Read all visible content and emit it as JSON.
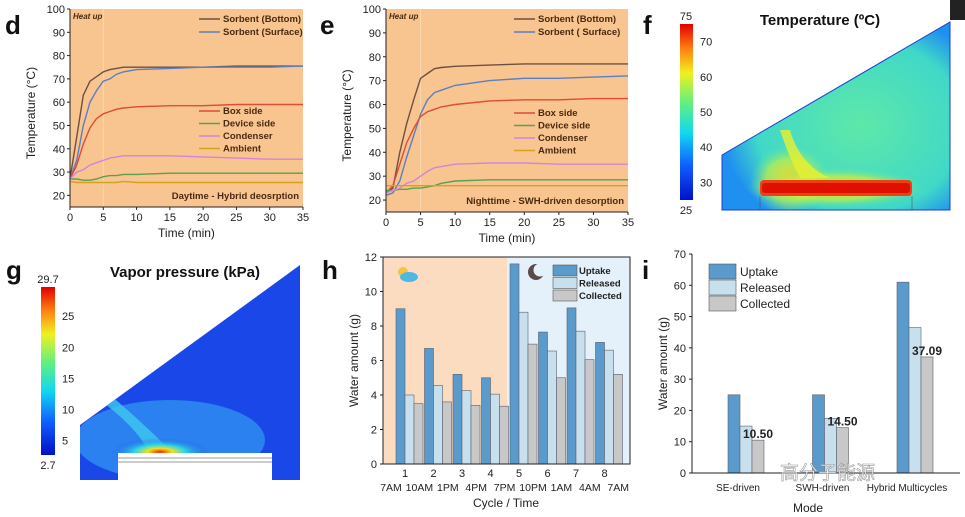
{
  "panel_letters": [
    "d",
    "e",
    "f",
    "g",
    "h",
    "i"
  ],
  "chart_data": [
    {
      "id": "d",
      "type": "line",
      "xlabel": "Time (min)",
      "ylabel": "Temperature (°C)",
      "xlim": [
        0,
        35
      ],
      "ylim": [
        15,
        100
      ],
      "xticks": [
        0,
        5,
        10,
        15,
        20,
        25,
        30,
        35
      ],
      "yticks": [
        20,
        30,
        40,
        50,
        60,
        70,
        80,
        90,
        100
      ],
      "background": "#f8c490",
      "annotations": {
        "phase": "Heat up",
        "mode": "Daytime - Hybrid deosrption"
      },
      "x": [
        0,
        1,
        2,
        3,
        4,
        5,
        6,
        7,
        8,
        10,
        15,
        20,
        25,
        30,
        35
      ],
      "series": [
        {
          "name": "Sorbent (Bottom)",
          "color": "#6e5040",
          "group": "top",
          "values": [
            27,
            45,
            63,
            69,
            71,
            73,
            74,
            74.5,
            75,
            75,
            75,
            75,
            75.5,
            75.5,
            75.5
          ]
        },
        {
          "name": "Sorbent (Surface)",
          "color": "#5b7fc2",
          "group": "top",
          "values": [
            27,
            35,
            50,
            60,
            65,
            69,
            70,
            72,
            73,
            74,
            74.5,
            75,
            75,
            75,
            75.5
          ]
        },
        {
          "name": "Box side",
          "color": "#e04a38",
          "group": "bottom",
          "values": [
            27,
            33,
            42,
            49,
            53,
            55,
            56,
            57,
            57.5,
            58,
            58.5,
            58.5,
            59,
            59,
            59
          ]
        },
        {
          "name": "Device side",
          "color": "#5aa050",
          "group": "bottom",
          "values": [
            27,
            27,
            26.5,
            26.5,
            27,
            28,
            28.5,
            28.5,
            29,
            29,
            29.5,
            29.5,
            29.5,
            29.5,
            29.5
          ]
        },
        {
          "name": "Condenser",
          "color": "#d584d8",
          "group": "bottom",
          "values": [
            27,
            30,
            31,
            33,
            34,
            35,
            36,
            36.5,
            37,
            37,
            37,
            36.5,
            36,
            35.5,
            35.5
          ]
        },
        {
          "name": "Ambient",
          "color": "#d4a21e",
          "group": "bottom",
          "values": [
            26,
            25.5,
            25.5,
            25.5,
            25.5,
            25.5,
            25.5,
            25.5,
            26,
            25.5,
            25.5,
            25.5,
            25.5,
            25.5,
            25.5
          ]
        }
      ]
    },
    {
      "id": "e",
      "type": "line",
      "xlabel": "Time (min)",
      "ylabel": "Temperature (°C)",
      "xlim": [
        0,
        35
      ],
      "ylim": [
        15,
        100
      ],
      "xticks": [
        0,
        5,
        10,
        15,
        20,
        25,
        30,
        35
      ],
      "yticks": [
        20,
        30,
        40,
        50,
        60,
        70,
        80,
        90,
        100
      ],
      "background": "#f8c490",
      "annotations": {
        "phase": "Heat up",
        "mode": "Nighttime - SWH-driven desorption"
      },
      "x": [
        0,
        1,
        2,
        3,
        4,
        5,
        6,
        7,
        8,
        10,
        15,
        20,
        25,
        30,
        35
      ],
      "series": [
        {
          "name": "Sorbent (Bottom)",
          "color": "#6e5040",
          "group": "top",
          "values": [
            23,
            25,
            40,
            52,
            62,
            71,
            73,
            75,
            75.5,
            76,
            76.5,
            77,
            77,
            77,
            77
          ]
        },
        {
          "name": "Sorbent ( Surface)",
          "color": "#5b7fc2",
          "group": "top",
          "values": [
            22,
            23,
            28,
            38,
            47,
            56,
            62,
            65,
            66,
            68,
            70,
            71,
            71,
            71.5,
            72
          ]
        },
        {
          "name": "Box side",
          "color": "#e04a38",
          "group": "bottom",
          "values": [
            23,
            26,
            35,
            44,
            50,
            55,
            57,
            58,
            59,
            60,
            61.5,
            62,
            62,
            62.5,
            62.5
          ]
        },
        {
          "name": "Device side",
          "color": "#5aa050",
          "group": "bottom",
          "values": [
            24,
            24,
            24.5,
            24.5,
            25,
            25,
            25.5,
            26,
            27,
            28,
            28.5,
            28.5,
            28.5,
            28.5,
            28.5
          ]
        },
        {
          "name": "Condenser",
          "color": "#d584d8",
          "group": "bottom",
          "values": [
            23,
            24,
            25,
            27,
            28,
            30,
            32,
            33.5,
            34,
            35,
            35.5,
            35.5,
            35,
            35,
            35
          ]
        },
        {
          "name": "Ambient",
          "color": "#d4a21e",
          "group": "bottom",
          "values": [
            26,
            26,
            26,
            26,
            26,
            26,
            26,
            26,
            26,
            26,
            26,
            26,
            26,
            26,
            26
          ]
        }
      ]
    },
    {
      "id": "f",
      "type": "heatmap",
      "title": "Temperature (ºC)",
      "colorbar": {
        "min": "25",
        "max": "75",
        "ticks": [
          "70",
          "60",
          "50",
          "40",
          "30"
        ]
      }
    },
    {
      "id": "g",
      "type": "heatmap",
      "title": "Vapor pressure (kPa)",
      "colorbar": {
        "min": "2.7",
        "max": "29.7",
        "ticks": [
          "25",
          "20",
          "15",
          "10",
          "5"
        ]
      }
    },
    {
      "id": "h",
      "type": "bar",
      "xlabel": "Cycle / Time",
      "ylabel": "Water amount (g)",
      "ylim": [
        0,
        12
      ],
      "yticks": [
        0,
        2,
        4,
        6,
        8,
        10,
        12
      ],
      "categories": [
        "1",
        "2",
        "3",
        "4",
        "5",
        "6",
        "7",
        "8"
      ],
      "time_labels": [
        "7AM",
        "10AM",
        "1PM",
        "4PM",
        "7PM",
        "10PM",
        "1AM",
        "4AM",
        "7AM"
      ],
      "day_color": "#fbdcc0",
      "night_color": "#e4f1fa",
      "icons": [
        "sun-cloud-icon",
        "moon-icon"
      ],
      "series": [
        {
          "name": "Uptake",
          "color": "#5b9bcc",
          "values": [
            9.0,
            6.7,
            5.2,
            5.0,
            11.6,
            7.65,
            9.05,
            7.05
          ]
        },
        {
          "name": "Released",
          "color": "#c8e0ee",
          "values": [
            4.0,
            4.55,
            4.25,
            4.05,
            8.8,
            6.55,
            7.7,
            6.6
          ]
        },
        {
          "name": "Collected",
          "color": "#c8c8c8",
          "values": [
            3.5,
            3.6,
            3.4,
            3.35,
            6.95,
            5.0,
            6.05,
            5.2
          ]
        }
      ]
    },
    {
      "id": "i",
      "type": "bar",
      "xlabel": "Mode",
      "ylabel": "Water amount (g)",
      "ylim": [
        0,
        70
      ],
      "yticks": [
        0,
        10,
        20,
        30,
        40,
        50,
        60,
        70
      ],
      "categories": [
        "SE-driven",
        "SWH-driven",
        "Hybrid Multicycles"
      ],
      "data_labels": [
        "10.50",
        "14.50",
        "37.09"
      ],
      "series": [
        {
          "name": "Uptake",
          "color": "#5b9bcc",
          "values": [
            25,
            25,
            61
          ]
        },
        {
          "name": "Released",
          "color": "#c8e0ee",
          "values": [
            15,
            17.5,
            46.5
          ]
        },
        {
          "name": "Collected",
          "color": "#c8c8c8",
          "values": [
            10.5,
            14.5,
            37.09
          ]
        }
      ]
    }
  ],
  "watermark": "高分子能源"
}
